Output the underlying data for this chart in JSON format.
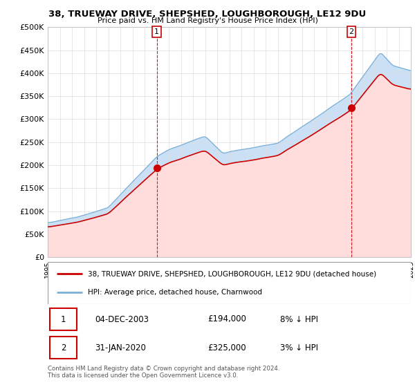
{
  "title": "38, TRUEWAY DRIVE, SHEPSHED, LOUGHBOROUGH, LE12 9DU",
  "subtitle": "Price paid vs. HM Land Registry's House Price Index (HPI)",
  "ylabel_ticks": [
    "£0",
    "£50K",
    "£100K",
    "£150K",
    "£200K",
    "£250K",
    "£300K",
    "£350K",
    "£400K",
    "£450K",
    "£500K"
  ],
  "ytick_values": [
    0,
    50000,
    100000,
    150000,
    200000,
    250000,
    300000,
    350000,
    400000,
    450000,
    500000
  ],
  "x_start_year": 1995,
  "x_end_year": 2025,
  "sale1_date": 2004.0,
  "sale1_price": 194000,
  "sale2_date": 2020.08,
  "sale2_price": 325000,
  "legend_line1": "38, TRUEWAY DRIVE, SHEPSHED, LOUGHBOROUGH, LE12 9DU (detached house)",
  "legend_line2": "HPI: Average price, detached house, Charnwood",
  "table_row1": [
    "1",
    "04-DEC-2003",
    "£194,000",
    "8% ↓ HPI"
  ],
  "table_row2": [
    "2",
    "31-JAN-2020",
    "£325,000",
    "3% ↓ HPI"
  ],
  "footnote": "Contains HM Land Registry data © Crown copyright and database right 2024.\nThis data is licensed under the Open Government Licence v3.0.",
  "hpi_fill_color": "#cce0f5",
  "sold_fill_color": "#ffdddd",
  "sold_color": "#cc0000",
  "hpi_line_color": "#7ab0d8",
  "annotation_color": "#cc0000",
  "bg_color": "#ffffff",
  "grid_color": "#dddddd"
}
